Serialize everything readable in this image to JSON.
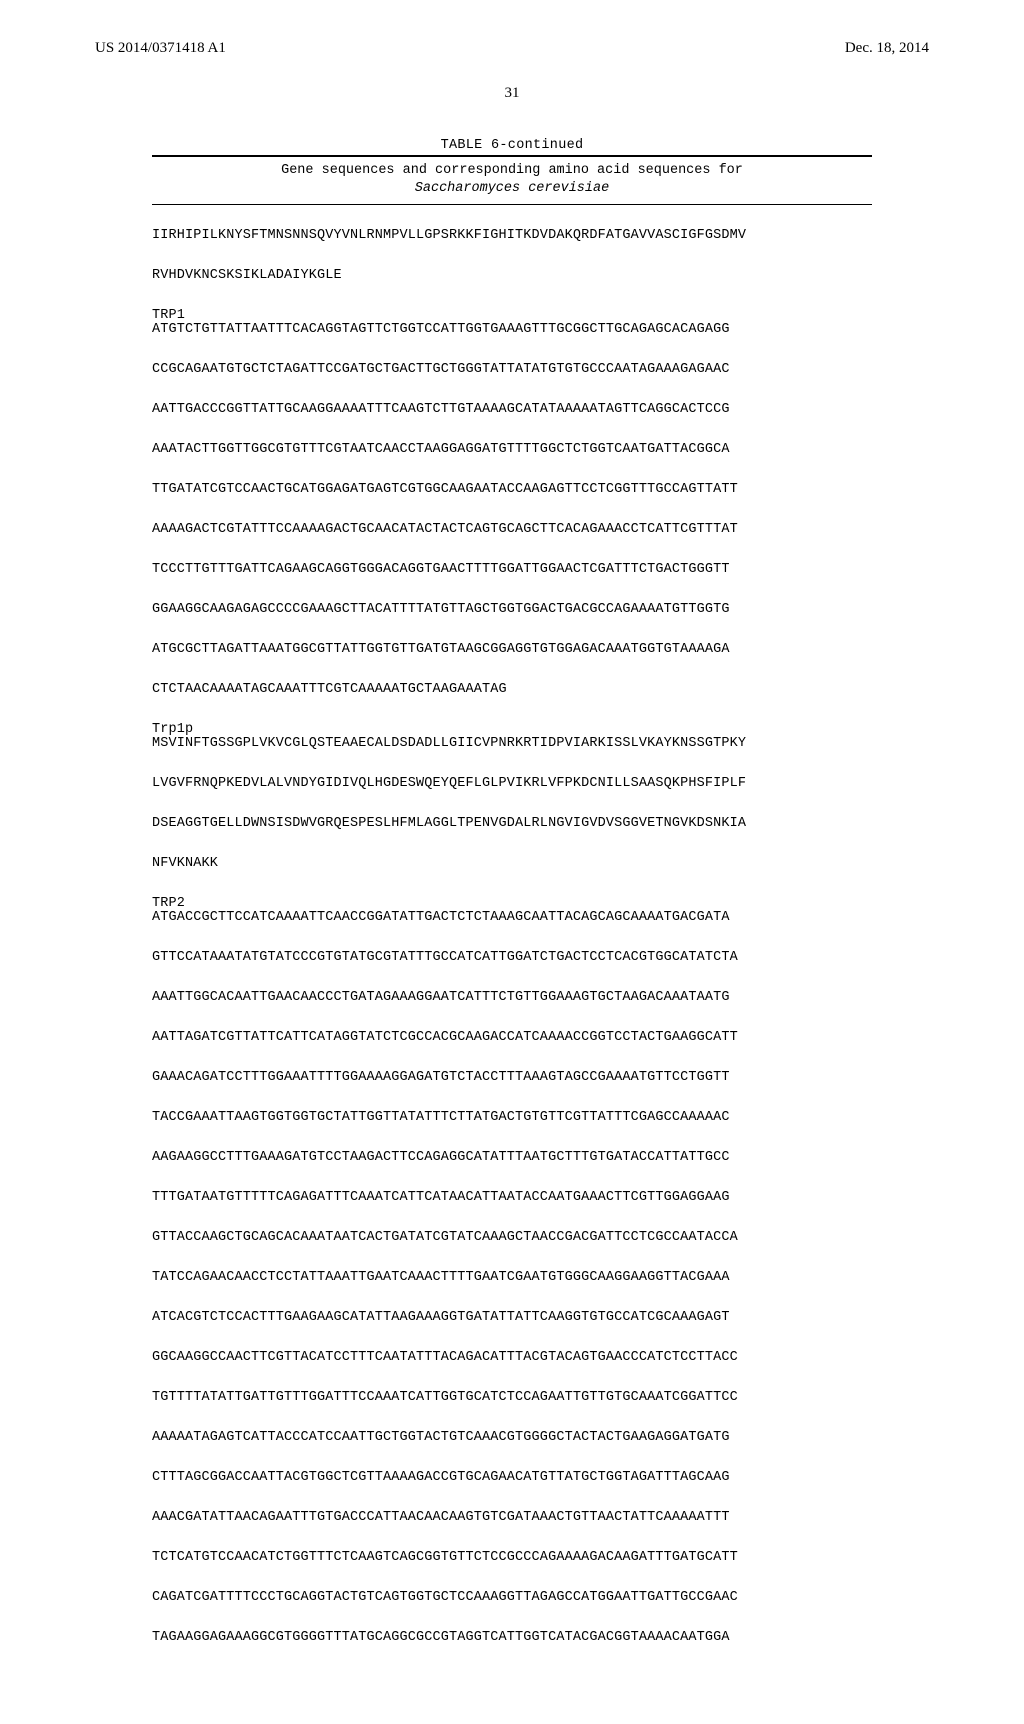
{
  "header": {
    "left": "US 2014/0371418 A1",
    "right": "Dec. 18, 2014"
  },
  "page_number": "31",
  "table": {
    "title": "TABLE 6-continued",
    "caption_line1": "Gene sequences and corresponding amino acid sequences for",
    "caption_line2_ital": "Saccharomyces cerevisiae"
  },
  "seq": {
    "chunk0": [
      "IIRHIPILKNYSFTMNSNNSQVYVNLRNMPVLLGPSRKKFIGHITKDVDAKQRDFATGAVVASCIGFGSDMV",
      "RVHDVKNCSKSIKLADAIYKGLE"
    ],
    "trp1_label": "TRP1",
    "trp1_dna": [
      "ATGTCTGTTATTAATTTCACAGGTAGTTCTGGTCCATTGGTGAAAGTTTGCGGCTTGCAGAGCACAGAGG",
      "CCGCAGAATGTGCTCTAGATTCCGATGCTGACTTGCTGGGTATTATATGTGTGCCCAATAGAAAGAGAAC",
      "AATTGACCCGGTTATTGCAAGGAAAATTTCAAGTCTTGTAAAAGCATATAAAAATAGTTCAGGCACTCCG",
      "AAATACTTGGTTGGCGTGTTTCGTAATCAACCTAAGGAGGATGTTTTGGCTCTGGTCAATGATTACGGCA",
      "TTGATATCGTCCAACTGCATGGAGATGAGTCGTGGCAAGAATACCAAGAGTTCCTCGGTTTGCCAGTTATT",
      "AAAAGACTCGTATTTCCAAAAGACTGCAACATACTACTCAGTGCAGCTTCACAGAAACCTCATTCGTTTAT",
      "TCCCTTGTTTGATTCAGAAGCAGGTGGGACAGGTGAACTTTTGGATTGGAACTCGATTTCTGACTGGGTT",
      "GGAAGGCAAGAGAGCCCCGAAAGCTTACATTTTATGTTAGCTGGTGGACTGACGCCAGAAAATGTTGGTG",
      "ATGCGCTTAGATTAAATGGCGTTATTGGTGTTGATGTAAGCGGAGGTGTGGAGACAAATGGTGTAAAAGA",
      "CTCTAACAAAATAGCAAATTTCGTCAAAAATGCTAAGAAATAG"
    ],
    "trp1p_label": "Trp1p",
    "trp1p_aa": [
      "MSVINFTGSSGPLVKVCGLQSTEAAECALDSDADLLGIICVPNRKRTIDPVIARKISSLVKAYKNSSGTPKY",
      "LVGVFRNQPKEDVLALVNDYGIDIVQLHGDESWQEYQEFLGLPVIKRLVFPKDCNILLSAASQKPHSFIPLF",
      "DSEAGGTGELLDWNSISDWVGRQESPESLHFMLAGGLTPENVGDALRLNGVIGVDVSGGVETNGVKDSNKIA",
      "NFVKNAKK"
    ],
    "trp2_label": "TRP2",
    "trp2_dna": [
      "ATGACCGCTTCCATCAAAATTCAACCGGATATTGACTCTCTAAAGCAATTACAGCAGCAAAATGACGATA",
      "GTTCCATAAATATGTATCCCGTGTATGCGTATTTGCCATCATTGGATCTGACTCCTCACGTGGCATATCTA",
      "AAATTGGCACAATTGAACAACCCTGATAGAAAGGAATCATTTCTGTTGGAAAGTGCTAAGACAAATAATG",
      "AATTAGATCGTTATTCATTCATAGGTATCTCGCCACGCAAGACCATCAAAACCGGTCCTACTGAAGGCATT",
      "GAAACAGATCCTTTGGAAATTTTGGAAAAGGAGATGTCTACCTTTAAAGTAGCCGAAAATGTTCCTGGTT",
      "TACCGAAATTAAGTGGTGGTGCTATTGGTTATATTTCTTATGACTGTGTTCGTTATTTCGAGCCAAAAAC",
      "AAGAAGGCCTTTGAAAGATGTCCTAAGACTTCCAGAGGCATATTTAATGCTTTGTGATACCATTATTGCC",
      "TTTGATAATGTTTTTCAGAGATTTCAAATCATTCATAACATTAATACCAATGAAACTTCGTTGGAGGAAG",
      "GTTACCAAGCTGCAGCACAAATAATCACTGATATCGTATCAAAGCTAACCGACGATTCCTCGCCAATACCA",
      "TATCCAGAACAACCTCCTATTAAATTGAATCAAACTTTTGAATCGAATGTGGGCAAGGAAGGTTACGAAA",
      "ATCACGTCTCCACTTTGAAGAAGCATATTAAGAAAGGTGATATTATTCAAGGTGTGCCATCGCAAAGAGT",
      "GGCAAGGCCAACTTCGTTACATCCTTTCAATATTTACAGACATTTACGTACAGTGAACCCATCTCCTTACC",
      "TGTTTTATATTGATTGTTTGGATTTCCAAATCATTGGTGCATCTCCAGAATTGTTGTGCAAATCGGATTCC",
      "AAAAATAGAGTCATTACCCATCCAATTGCTGGTACTGTCAAACGTGGGGCTACTACTGAAGAGGATGATG",
      "CTTTAGCGGACCAATTACGTGGCTCGTTAAAAGACCGTGCAGAACATGTTATGCTGGTAGATTTAGCAAG",
      "AAACGATATTAACAGAATTTGTGACCCATTAACAACAAGTGTCGATAAACTGTTAACTATTCAAAAATTT",
      "TCTCATGTCCAACATCTGGTTTCTCAAGTCAGCGGTGTTCTCCGCCCAGAAAAGACAAGATTTGATGCATT",
      "CAGATCGATTTTCCCTGCAGGTACTGTCAGTGGTGCTCCAAAGGTTAGAGCCATGGAATTGATTGCCGAAC",
      "TAGAAGGAGAAAGGCGTGGGGTTTATGCAGGCGCCGTAGGTCATTGGTCATACGACGGTAAAACAATGGA"
    ]
  }
}
